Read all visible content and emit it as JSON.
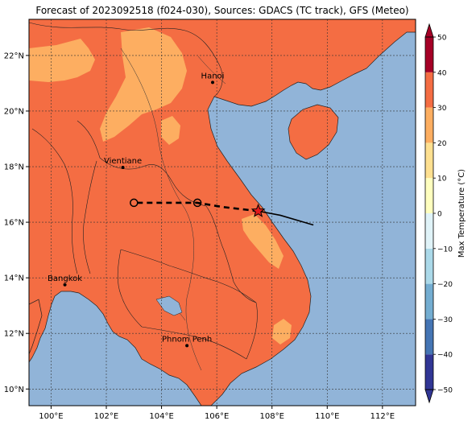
{
  "title": "Forecast of 2023092518 (f024-030), Sources: GDACS (TC track), GFS (Meteo)",
  "map": {
    "lon_ticks": [
      "100°E",
      "102°E",
      "104°E",
      "106°E",
      "108°E",
      "110°E",
      "112°E"
    ],
    "lat_ticks": [
      "22°N",
      "20°N",
      "18°N",
      "16°N",
      "14°N",
      "12°N",
      "10°N"
    ],
    "extent": {
      "lon": [
        99.2,
        113.2
      ],
      "lat": [
        9.4,
        23.3
      ]
    },
    "gridlines": true,
    "cities": [
      {
        "name": "Hanoi",
        "lon": 105.85,
        "lat": 21.03
      },
      {
        "name": "Vientiane",
        "lon": 102.6,
        "lat": 17.97
      },
      {
        "name": "Bangkok",
        "lon": 100.5,
        "lat": 13.75
      },
      {
        "name": "Phnom Penh",
        "lon": 104.92,
        "lat": 11.56
      }
    ],
    "track": {
      "observed": [
        [
          109.5,
          15.9
        ],
        [
          108.3,
          16.25
        ],
        [
          107.5,
          16.4
        ]
      ],
      "forecast": [
        [
          107.5,
          16.4
        ],
        [
          106.2,
          16.55
        ],
        [
          105.3,
          16.7
        ],
        [
          103.0,
          16.7
        ]
      ],
      "current_position": [
        107.5,
        16.4
      ],
      "forecast_points": [
        [
          105.3,
          16.7
        ],
        [
          103.0,
          16.7
        ]
      ]
    },
    "colors": {
      "sea": "#91b4d8",
      "land_hot": "#f46d43",
      "land_warm": "#fdae61",
      "track": "#000000",
      "star": "#e31a1c"
    }
  },
  "colorbar": {
    "label": "Max Temperature (°C)",
    "ticks": [
      "50",
      "40",
      "30",
      "20",
      "10",
      "0",
      "−10",
      "−20",
      "−30",
      "−40",
      "−50"
    ],
    "range": [
      -50,
      50
    ],
    "colors": [
      "#313695",
      "#4575b4",
      "#74add1",
      "#abd9e9",
      "#e0f3f8",
      "#ffffbf",
      "#fee090",
      "#fdae61",
      "#f46d43",
      "#d73027",
      "#a50026"
    ]
  }
}
